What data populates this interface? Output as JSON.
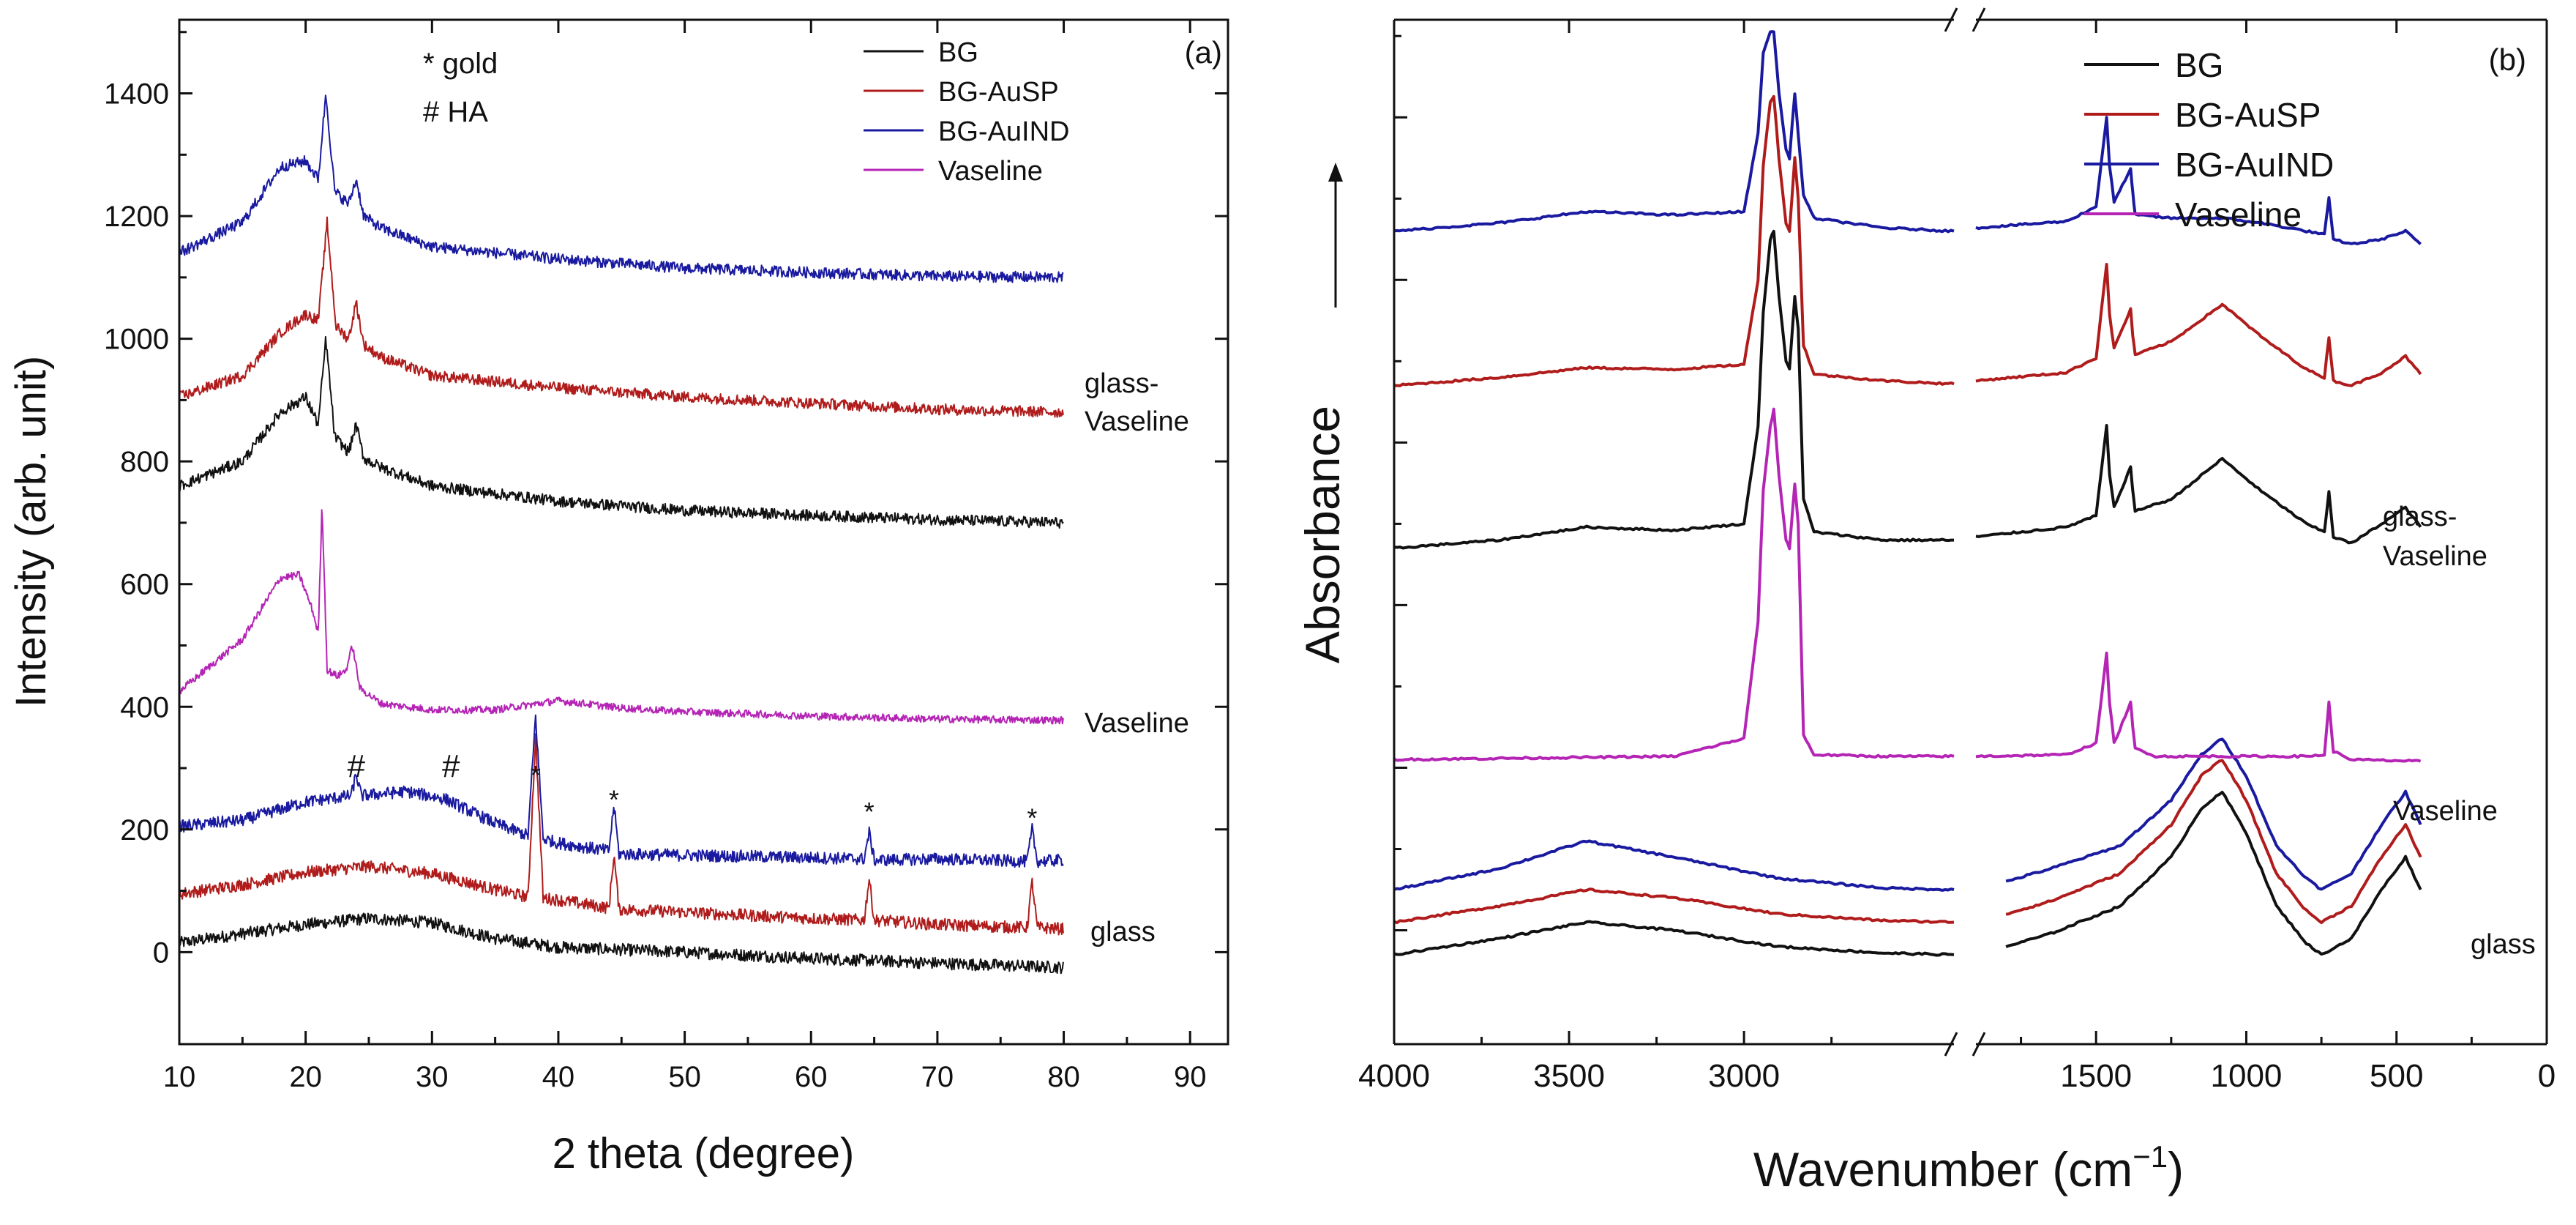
{
  "colors": {
    "BG": "#111111",
    "BG-AuSP": "#b01c1c",
    "BG-AuIND": "#1a1aa0",
    "Vaseline": "#b525b5",
    "axis": "#111111"
  },
  "chart_data": [
    {
      "panel": "(a)",
      "type": "line",
      "xlabel": "2 theta (degree)",
      "ylabel": "Intensity (arb. unit)",
      "xlim": [
        10,
        93
      ],
      "ylim": [
        -150,
        1520
      ],
      "xticks": [
        10,
        20,
        30,
        40,
        50,
        60,
        70,
        80,
        90
      ],
      "xtick_labels": [
        "10",
        "20",
        "30",
        "40",
        "50",
        "60",
        "70",
        "80",
        "90"
      ],
      "yticks": [
        0,
        200,
        400,
        600,
        800,
        1000,
        1200,
        1400
      ],
      "ytick_labels": [
        "0",
        "200",
        "400",
        "600",
        "800",
        "1000",
        "1200",
        "1400"
      ],
      "legend": {
        "position": "top-right",
        "entries": [
          "BG",
          "BG-AuSP",
          "BG-AuIND",
          "Vaseline"
        ]
      },
      "annotations_text": [
        "* gold",
        "# HA"
      ],
      "group_labels": [
        "glass-",
        "Vaseline",
        "Vaseline",
        "glass"
      ],
      "peak_markers": [
        {
          "x": 24,
          "y": 262,
          "symbol": "#"
        },
        {
          "x": 31.5,
          "y": 262,
          "symbol": "#"
        },
        {
          "x": 38.2,
          "y": 250,
          "symbol": "*"
        },
        {
          "x": 44.4,
          "y": 210,
          "symbol": "*"
        },
        {
          "x": 64.6,
          "y": 190,
          "symbol": "*"
        },
        {
          "x": 77.5,
          "y": 180,
          "symbol": "*"
        }
      ],
      "series": [
        {
          "name": "BG",
          "group": "glass",
          "color": "BG",
          "noise": 10,
          "x": [
            10,
            15,
            20,
            25,
            30,
            35,
            40,
            50,
            60,
            70,
            80
          ],
          "y": [
            15,
            30,
            45,
            55,
            48,
            22,
            8,
            0,
            -10,
            -18,
            -25
          ]
        },
        {
          "name": "BG-AuSP",
          "group": "glass",
          "color": "BG-AuSP",
          "noise": 10,
          "x": [
            10,
            15,
            20,
            25,
            30,
            35,
            37.6,
            38.2,
            38.8,
            40,
            44,
            44.4,
            44.8,
            50,
            60,
            64.2,
            64.6,
            65,
            70,
            77.1,
            77.5,
            77.9,
            80
          ],
          "y": [
            95,
            110,
            130,
            140,
            128,
            102,
            90,
            350,
            88,
            85,
            72,
            160,
            70,
            65,
            55,
            52,
            120,
            52,
            45,
            40,
            115,
            40,
            38
          ]
        },
        {
          "name": "BG-AuIND",
          "group": "glass",
          "color": "BG-AuIND",
          "noise": 10,
          "x": [
            10,
            15,
            20,
            23.6,
            24,
            24.4,
            28,
            31,
            35,
            37.6,
            38.2,
            38.8,
            40,
            44,
            44.4,
            44.8,
            50,
            60,
            64.2,
            64.6,
            65,
            70,
            77.1,
            77.5,
            77.9,
            80
          ],
          "y": [
            205,
            215,
            245,
            255,
            290,
            255,
            262,
            250,
            210,
            190,
            385,
            185,
            178,
            165,
            240,
            160,
            158,
            154,
            152,
            195,
            150,
            152,
            148,
            200,
            148,
            150
          ]
        },
        {
          "name": "Vaseline",
          "group": "Vaseline",
          "color": "Vaseline",
          "noise": 6,
          "x": [
            10,
            15,
            18,
            19.5,
            20.5,
            21,
            21.3,
            21.7,
            22.5,
            23.2,
            23.7,
            24.3,
            26,
            30,
            35,
            40,
            45,
            50,
            60,
            70,
            80
          ],
          "y": [
            425,
            510,
            610,
            615,
            560,
            520,
            730,
            460,
            450,
            460,
            500,
            430,
            405,
            395,
            395,
            410,
            398,
            392,
            385,
            380,
            378
          ]
        },
        {
          "name": "BG",
          "group": "glass-Vaseline",
          "color": "BG",
          "noise": 9,
          "x": [
            10,
            15,
            18,
            20,
            21,
            21.6,
            22.3,
            23.4,
            24,
            24.6,
            26,
            30,
            40,
            50,
            60,
            70,
            80
          ],
          "y": [
            760,
            800,
            880,
            905,
            860,
            1000,
            840,
            815,
            860,
            805,
            790,
            760,
            735,
            720,
            712,
            705,
            700
          ]
        },
        {
          "name": "BG-AuSP",
          "group": "glass-Vaseline",
          "color": "BG-AuSP",
          "noise": 9,
          "x": [
            10,
            15,
            18,
            20,
            21,
            21.7,
            22.4,
            23.4,
            24,
            24.6,
            26,
            30,
            40,
            50,
            60,
            70,
            80
          ],
          "y": [
            905,
            940,
            1010,
            1040,
            1030,
            1190,
            1020,
            1000,
            1060,
            990,
            970,
            940,
            920,
            905,
            895,
            885,
            880
          ]
        },
        {
          "name": "BG-AuIND",
          "group": "glass-Vaseline",
          "color": "BG-AuIND",
          "noise": 9,
          "x": [
            10,
            15,
            18,
            20,
            21,
            21.6,
            22.3,
            23.4,
            24,
            24.6,
            26,
            30,
            40,
            50,
            60,
            70,
            80
          ],
          "y": [
            1140,
            1190,
            1280,
            1290,
            1260,
            1400,
            1240,
            1220,
            1260,
            1200,
            1180,
            1150,
            1130,
            1115,
            1108,
            1102,
            1100
          ]
        }
      ]
    },
    {
      "panel": "(b)",
      "type": "line",
      "xlabel": "Wavenumber (cm",
      "xlabel_sup": "−1",
      "xlabel_close": ")",
      "ylabel": "Absorbance",
      "x_axis_break": [
        1900,
        2400
      ],
      "xlim_left_segment": [
        4000,
        2400
      ],
      "xlim_right_segment": [
        1900,
        0
      ],
      "xticks": [
        4000,
        3500,
        3000,
        1500,
        1000,
        500,
        0
      ],
      "xtick_labels": [
        "4000",
        "3500",
        "3000",
        "1500",
        "1000",
        "500",
        "0"
      ],
      "ylim": [
        -0.5,
        5.8
      ],
      "yticks_unlabeled": [
        0.2,
        1.2,
        2.2,
        3.2,
        4.2,
        5.2
      ],
      "legend": {
        "position": "top-right",
        "entries": [
          "BG",
          "BG-AuSP",
          "BG-AuIND",
          "Vaseline"
        ]
      },
      "group_labels": [
        "glass-",
        "Vaseline",
        "Vaseline",
        "glass"
      ],
      "series": [
        {
          "name": "BG",
          "group": "glass",
          "color": "BG",
          "x": [
            4000,
            3700,
            3450,
            3200,
            2900,
            2600,
            2400,
            1800,
            1650,
            1420,
            1250,
            1150,
            1080,
            1000,
            900,
            800,
            750,
            650,
            550,
            470,
            420
          ],
          "y": [
            0.05,
            0.15,
            0.25,
            0.2,
            0.1,
            0.06,
            0.05,
            0.1,
            0.18,
            0.35,
            0.65,
            0.95,
            1.05,
            0.8,
            0.35,
            0.12,
            0.05,
            0.15,
            0.45,
            0.65,
            0.45
          ]
        },
        {
          "name": "BG-AuSP",
          "group": "glass",
          "color": "BG-AuSP",
          "x": [
            4000,
            3700,
            3450,
            3200,
            2900,
            2600,
            2400,
            1800,
            1650,
            1420,
            1250,
            1150,
            1080,
            1000,
            900,
            800,
            750,
            650,
            550,
            470,
            420
          ],
          "y": [
            0.25,
            0.35,
            0.45,
            0.4,
            0.3,
            0.26,
            0.25,
            0.3,
            0.38,
            0.55,
            0.85,
            1.15,
            1.25,
            1.0,
            0.55,
            0.32,
            0.25,
            0.35,
            0.65,
            0.85,
            0.65
          ]
        },
        {
          "name": "BG-AuIND",
          "group": "glass",
          "color": "BG-AuIND",
          "x": [
            4000,
            3700,
            3450,
            3200,
            2900,
            2600,
            2400,
            1800,
            1650,
            1420,
            1250,
            1150,
            1080,
            1000,
            900,
            800,
            750,
            650,
            550,
            470,
            420
          ],
          "y": [
            0.45,
            0.58,
            0.75,
            0.65,
            0.52,
            0.46,
            0.45,
            0.5,
            0.58,
            0.72,
            1.0,
            1.28,
            1.38,
            1.15,
            0.72,
            0.52,
            0.45,
            0.55,
            0.85,
            1.05,
            0.85
          ]
        },
        {
          "name": "Vaseline",
          "group": "Vaseline",
          "color": "Vaseline",
          "x": [
            4000,
            3200,
            3000,
            2960,
            2945,
            2925,
            2915,
            2900,
            2880,
            2870,
            2855,
            2845,
            2830,
            2800,
            2600,
            2400,
            1900,
            1600,
            1500,
            1465,
            1455,
            1440,
            1385,
            1378,
            1370,
            1300,
            800,
            740,
            725,
            710,
            650,
            420
          ],
          "y": [
            1.25,
            1.27,
            1.38,
            2.1,
            2.9,
            3.3,
            3.4,
            3.0,
            2.6,
            2.55,
            2.95,
            2.7,
            1.4,
            1.28,
            1.27,
            1.27,
            1.27,
            1.28,
            1.35,
            1.9,
            1.6,
            1.35,
            1.6,
            1.45,
            1.32,
            1.27,
            1.27,
            1.28,
            1.6,
            1.3,
            1.25,
            1.24
          ]
        },
        {
          "name": "BG",
          "group": "glass-Vaseline",
          "color": "BG",
          "x": [
            4000,
            3700,
            3450,
            3200,
            3000,
            2960,
            2945,
            2925,
            2915,
            2900,
            2880,
            2870,
            2855,
            2845,
            2830,
            2800,
            2600,
            2400,
            1900,
            1600,
            1500,
            1465,
            1455,
            1440,
            1385,
            1378,
            1370,
            1250,
            1080,
            950,
            800,
            740,
            725,
            710,
            650,
            550,
            470,
            420
          ],
          "y": [
            2.55,
            2.6,
            2.68,
            2.66,
            2.7,
            3.3,
            4.0,
            4.45,
            4.5,
            4.1,
            3.7,
            3.65,
            4.1,
            3.9,
            2.85,
            2.65,
            2.6,
            2.6,
            2.62,
            2.68,
            2.75,
            3.3,
            3.0,
            2.8,
            3.05,
            2.9,
            2.78,
            2.85,
            3.1,
            2.9,
            2.7,
            2.65,
            2.9,
            2.62,
            2.58,
            2.7,
            2.8,
            2.68
          ]
        },
        {
          "name": "BG-AuSP",
          "group": "glass-Vaseline",
          "color": "BG-AuSP",
          "x": [
            4000,
            3700,
            3450,
            3200,
            3000,
            2960,
            2945,
            2925,
            2915,
            2900,
            2880,
            2870,
            2855,
            2845,
            2830,
            2800,
            2600,
            2400,
            1900,
            1600,
            1500,
            1465,
            1455,
            1440,
            1385,
            1378,
            1370,
            1250,
            1080,
            950,
            800,
            740,
            725,
            710,
            650,
            550,
            470,
            420
          ],
          "y": [
            3.55,
            3.6,
            3.66,
            3.65,
            3.68,
            4.2,
            4.9,
            5.3,
            5.33,
            4.95,
            4.55,
            4.5,
            4.95,
            4.7,
            3.8,
            3.62,
            3.58,
            3.56,
            3.58,
            3.63,
            3.72,
            4.3,
            3.98,
            3.78,
            4.02,
            3.86,
            3.74,
            3.82,
            4.05,
            3.85,
            3.65,
            3.6,
            3.85,
            3.58,
            3.55,
            3.63,
            3.73,
            3.62
          ]
        },
        {
          "name": "BG-AuIND",
          "group": "glass-Vaseline",
          "color": "BG-AuIND",
          "x": [
            4000,
            3700,
            3450,
            3200,
            3000,
            2960,
            2945,
            2925,
            2915,
            2900,
            2880,
            2870,
            2855,
            2845,
            2830,
            2800,
            2600,
            2400,
            1900,
            1600,
            1500,
            1465,
            1455,
            1440,
            1385,
            1378,
            1370,
            1250,
            1080,
            950,
            800,
            740,
            725,
            710,
            650,
            550,
            470,
            420
          ],
          "y": [
            4.5,
            4.55,
            4.62,
            4.6,
            4.62,
            5.1,
            5.6,
            5.72,
            5.73,
            5.35,
            5.0,
            4.95,
            5.35,
            5.1,
            4.72,
            4.58,
            4.52,
            4.5,
            4.52,
            4.56,
            4.65,
            5.2,
            4.9,
            4.68,
            4.88,
            4.74,
            4.6,
            4.58,
            4.58,
            4.55,
            4.5,
            4.48,
            4.7,
            4.45,
            4.42,
            4.45,
            4.5,
            4.42
          ]
        }
      ]
    }
  ]
}
